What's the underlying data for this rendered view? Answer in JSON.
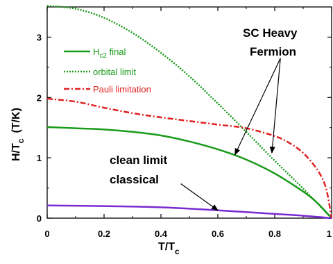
{
  "chart_data": {
    "type": "line",
    "title": "",
    "xlabel": {
      "main": "T/T",
      "sub": "c"
    },
    "ylabel": {
      "main": "H/T",
      "sub": "c",
      "tail": "(T/K)"
    },
    "xlim": [
      0,
      1
    ],
    "ylim": [
      0,
      3.5
    ],
    "x_ticks": [
      "0",
      "0.2",
      "0.4",
      "0.6",
      "0.8",
      "1"
    ],
    "y_ticks": [
      "0",
      "1",
      "2",
      "3"
    ],
    "grid": false,
    "legend_position": "top-left",
    "series": [
      {
        "name": "H final",
        "name_parts": {
          "base": "H",
          "sub": "c2",
          "tail": " final"
        },
        "color": "#1a9a1a",
        "style": "solid",
        "points": [
          [
            0,
            1.51
          ],
          [
            0.1,
            1.49
          ],
          [
            0.2,
            1.47
          ],
          [
            0.3,
            1.43
          ],
          [
            0.4,
            1.37
          ],
          [
            0.5,
            1.27
          ],
          [
            0.6,
            1.14
          ],
          [
            0.7,
            0.97
          ],
          [
            0.8,
            0.74
          ],
          [
            0.9,
            0.44
          ],
          [
            0.95,
            0.25
          ],
          [
            1.0,
            0.0
          ]
        ]
      },
      {
        "name": "orbital limit",
        "color": "#1a9a1a",
        "style": "dotted",
        "points": [
          [
            0,
            3.52
          ],
          [
            0.1,
            3.47
          ],
          [
            0.2,
            3.32
          ],
          [
            0.3,
            3.07
          ],
          [
            0.4,
            2.74
          ],
          [
            0.5,
            2.35
          ],
          [
            0.6,
            1.9
          ],
          [
            0.7,
            1.43
          ],
          [
            0.8,
            0.95
          ],
          [
            0.9,
            0.49
          ],
          [
            1.0,
            0.0
          ]
        ]
      },
      {
        "name": "Pauli limitation",
        "color": "#e02020",
        "style": "dashdot",
        "points": [
          [
            0,
            1.98
          ],
          [
            0.1,
            1.93
          ],
          [
            0.2,
            1.83
          ],
          [
            0.3,
            1.74
          ],
          [
            0.4,
            1.67
          ],
          [
            0.5,
            1.61
          ],
          [
            0.6,
            1.55
          ],
          [
            0.7,
            1.49
          ],
          [
            0.8,
            1.36
          ],
          [
            0.85,
            1.25
          ],
          [
            0.9,
            1.08
          ],
          [
            0.95,
            0.8
          ],
          [
            0.98,
            0.5
          ],
          [
            1.0,
            0.0
          ]
        ]
      },
      {
        "name": "clean limit classical",
        "color": "#7a2ad0",
        "style": "solid",
        "points": [
          [
            0,
            0.21
          ],
          [
            0.2,
            0.2
          ],
          [
            0.4,
            0.18
          ],
          [
            0.6,
            0.13
          ],
          [
            0.8,
            0.07
          ],
          [
            0.9,
            0.04
          ],
          [
            1.0,
            0.0
          ]
        ]
      }
    ],
    "annotations": [
      {
        "text": "SC Heavy",
        "id": "sc1"
      },
      {
        "text": "Fermion",
        "id": "sc2"
      },
      {
        "text": "clean limit",
        "id": "cl1"
      },
      {
        "text": "classical",
        "id": "cl2"
      }
    ],
    "arrows": [
      {
        "from": [
          0.82,
          2.65
        ],
        "to": [
          0.66,
          1.05
        ]
      },
      {
        "from": [
          0.82,
          2.65
        ],
        "to": [
          0.79,
          1.08
        ]
      },
      {
        "from": [
          0.47,
          0.57
        ],
        "to": [
          0.6,
          0.13
        ]
      }
    ]
  }
}
